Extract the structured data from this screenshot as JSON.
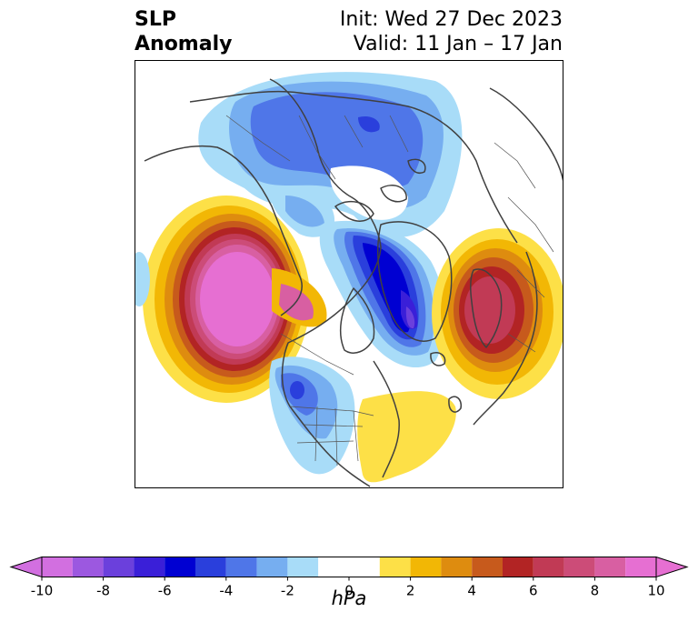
{
  "title": {
    "variable_line1": "SLP",
    "variable_line2": "Anomaly",
    "init": "Init: Wed 27 Dec 2023",
    "valid": "Valid: 11 Jan – 17 Jan"
  },
  "colorbar": {
    "units": "hPa",
    "tick_labels": [
      "-10",
      "-8",
      "-6",
      "-4",
      "-2",
      "0",
      "2",
      "4",
      "6",
      "8",
      "10"
    ],
    "min": -10,
    "max": 10,
    "extend": "both",
    "levels": [
      {
        "from": -10,
        "to": -9,
        "color": "#d26fe0"
      },
      {
        "from": -9,
        "to": -8,
        "color": "#9c58e0"
      },
      {
        "from": -8,
        "to": -7,
        "color": "#6b40dc"
      },
      {
        "from": -7,
        "to": -6,
        "color": "#3a1fd8"
      },
      {
        "from": -6,
        "to": -5,
        "color": "#0000d2"
      },
      {
        "from": -5,
        "to": -4,
        "color": "#2a3fdc"
      },
      {
        "from": -4,
        "to": -3,
        "color": "#4f76e8"
      },
      {
        "from": -3,
        "to": -2,
        "color": "#76aef0"
      },
      {
        "from": -2,
        "to": -1,
        "color": "#a8dcf8"
      },
      {
        "from": -1,
        "to": 1,
        "color": "#ffffff"
      },
      {
        "from": 1,
        "to": 2,
        "color": "#fde047"
      },
      {
        "from": 2,
        "to": 3,
        "color": "#f2b705"
      },
      {
        "from": 3,
        "to": 4,
        "color": "#de8c0f"
      },
      {
        "from": 4,
        "to": 5,
        "color": "#c75a1c"
      },
      {
        "from": 5,
        "to": 6,
        "color": "#b22424"
      },
      {
        "from": 6,
        "to": 7,
        "color": "#c13a55"
      },
      {
        "from": 7,
        "to": 8,
        "color": "#cc4c78"
      },
      {
        "from": 8,
        "to": 9,
        "color": "#d85fa2"
      },
      {
        "from": 9,
        "to": 10,
        "color": "#e66fd2"
      }
    ],
    "under_color": "#d26fe0",
    "over_color": "#e66fd2"
  },
  "map": {
    "projection": "north-polar stereographic",
    "features": [
      "coastlines",
      "country borders",
      "state borders"
    ],
    "anomaly_centers": [
      {
        "region": "North-east Pacific / Gulf of Alaska",
        "sign": "positive",
        "peak_hpa": 10
      },
      {
        "region": "Barents Sea / northern Scandinavia",
        "sign": "positive",
        "peak_hpa": 7
      },
      {
        "region": "Western Atlantic off eastern US",
        "sign": "positive",
        "peak_hpa": 2
      },
      {
        "region": "Greenland Sea / Iceland",
        "sign": "negative",
        "peak_hpa": -9
      },
      {
        "region": "Northern Russia",
        "sign": "negative",
        "peak_hpa": -5
      },
      {
        "region": "Western United States",
        "sign": "negative",
        "peak_hpa": -4
      }
    ]
  }
}
